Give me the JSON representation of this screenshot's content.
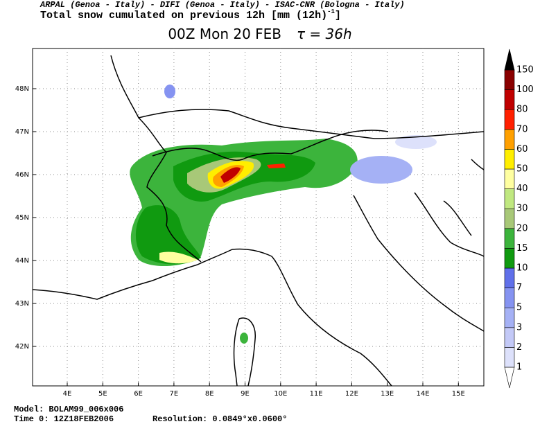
{
  "header": {
    "credits": "ARPAL (Genoa - Italy)  -  DIFI (Genoa - Italy)  -  ISAC-CNR (Bologna - Italy)",
    "title": "Total snow cumulated on previous 12h [mm (12h)",
    "title_exponent": "-1",
    "title_end": "]",
    "valid_time": "00Z Mon 20 FEB",
    "tau": "τ = 36h"
  },
  "map": {
    "lat_labels": [
      "48N",
      "47N",
      "46N",
      "45N",
      "44N",
      "43N",
      "42N"
    ],
    "lon_labels": [
      "4E",
      "5E",
      "6E",
      "7E",
      "8E",
      "9E",
      "10E",
      "11E",
      "12E",
      "13E",
      "14E",
      "15E"
    ]
  },
  "colorbar": {
    "levels": [
      1,
      2,
      3,
      5,
      7,
      10,
      15,
      20,
      30,
      40,
      50,
      60,
      70,
      80,
      100,
      150
    ],
    "colors": [
      "#ffffff",
      "#dde1fb",
      "#c3c9f7",
      "#a5b1f5",
      "#8593f1",
      "#6070ea",
      "#109a10",
      "#3cb43c",
      "#a8c878",
      "#c0e880",
      "#ffffa0",
      "#ffee00",
      "#ffa000",
      "#ff2000",
      "#c00000",
      "#8a0000",
      "#000000"
    ]
  },
  "footer": {
    "model": "Model: BOLAM99_006x006",
    "time": "Time 0: 12Z18FEB2006",
    "resolution": "Resolution: 0.0849°x0.0600°"
  }
}
